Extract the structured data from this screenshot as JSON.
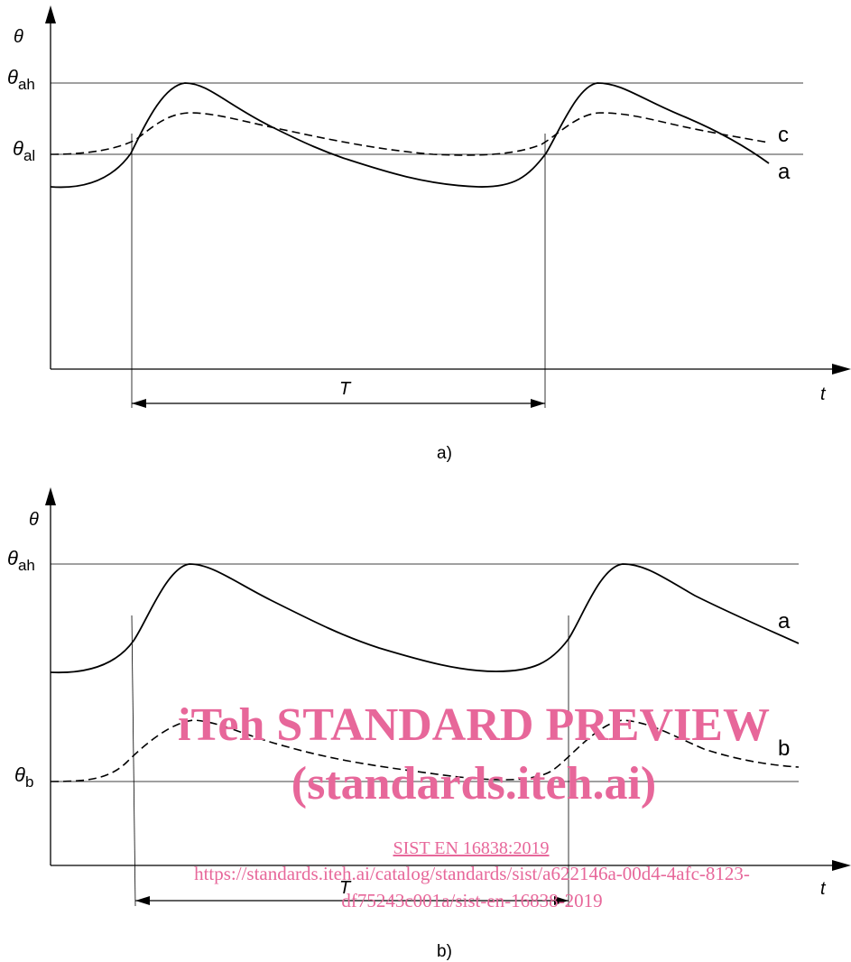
{
  "panel_a": {
    "y_axis_label": "θ",
    "x_axis_label": "t",
    "level_high_symbol": "θ",
    "level_high_sub": "ah",
    "level_low_symbol": "θ",
    "level_low_sub": "al",
    "curve_a_label": "a",
    "curve_c_label": "c",
    "period_label": "T",
    "caption": "a)"
  },
  "panel_b": {
    "y_axis_label": "θ",
    "x_axis_label": "t",
    "level_high_symbol": "θ",
    "level_high_sub": "ah",
    "level_b_symbol": "θ",
    "level_b_sub": "b",
    "curve_a_label": "a",
    "curve_b_label": "b",
    "period_label": "T",
    "caption": "b)"
  },
  "watermark": {
    "line1": "iTeh STANDARD PREVIEW",
    "line2": "(standards.iteh.ai)",
    "link": "SIST EN 16838:2019",
    "url_line1": "https://standards.iteh.ai/catalog/standards/sist/a622146a-00d4-4afc-8123-",
    "url_line2": "df75243c001a/sist-en-16838-2019"
  }
}
